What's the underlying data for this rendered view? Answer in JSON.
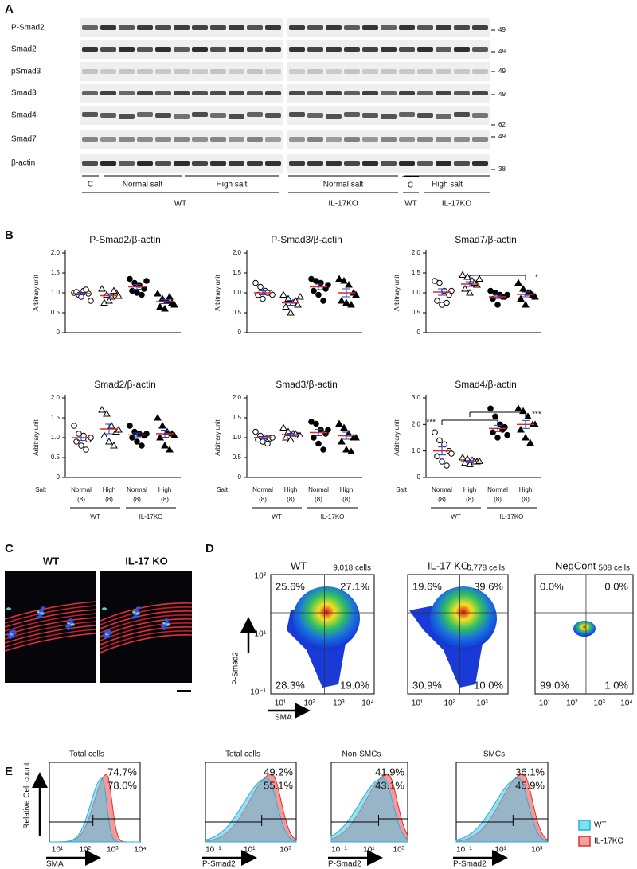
{
  "panel_a": {
    "label": "A",
    "rows": [
      {
        "name": "P-Smad2",
        "mw": "49"
      },
      {
        "name": "Smad2",
        "mw": "49"
      },
      {
        "name": "pSmad3",
        "mw": "49"
      },
      {
        "name": "Smad3",
        "mw": "49"
      },
      {
        "name": "Smad4",
        "mw": "62"
      },
      {
        "name": "Smad7",
        "mw": "49"
      },
      {
        "name": "β-actin",
        "mw": "38"
      }
    ],
    "groups": [
      "C",
      "Normal salt",
      "High salt",
      "Normal salt",
      "C",
      "High salt"
    ],
    "genotypes": [
      "WT",
      "IL-17KO",
      "WT",
      "IL-17KO"
    ]
  },
  "panel_b": {
    "label": "B"
  },
  "chart_data": [
    {
      "type": "dot",
      "title": "P-Smad2/β-actin",
      "y_label": "Arbitrary unit",
      "ylim": [
        0,
        2
      ],
      "yticks": [
        0,
        0.5,
        {
          "value": 1,
          "label": "1.0"
        },
        1.5,
        {
          "value": 2,
          "label": "2.0"
        }
      ],
      "markers": [
        "open-circle",
        "open-triangle",
        "filled-circle",
        "filled-triangle"
      ],
      "mean_color": "#e02a1c",
      "sem_color": "#1f3fd0",
      "groups": [
        {
          "values": [
            1.0,
            0.95,
            1.05,
            0.98,
            1.02,
            0.9,
            1.08,
            0.8
          ],
          "mean": 0.98,
          "sem": 0.03
        },
        {
          "values": [
            1.1,
            0.95,
            0.9,
            1.0,
            0.75,
            0.8,
            1.05,
            0.92
          ],
          "mean": 0.93,
          "sem": 0.05
        },
        {
          "values": [
            1.35,
            1.25,
            1.2,
            1.1,
            1.05,
            1.0,
            0.95,
            1.3
          ],
          "mean": 1.15,
          "sem": 0.06
        },
        {
          "values": [
            0.98,
            0.85,
            0.8,
            0.75,
            0.65,
            0.6,
            0.9,
            0.7
          ],
          "mean": 0.78,
          "sem": 0.05
        }
      ]
    },
    {
      "type": "dot",
      "title": "P-Smad3/β-actin",
      "y_label": "Arbitrary unit",
      "ylim": [
        0,
        2
      ],
      "yticks": [
        0,
        0.5,
        {
          "value": 1,
          "label": "1.0"
        },
        1.5,
        {
          "value": 2,
          "label": "2.0"
        }
      ],
      "markers": [
        "open-circle",
        "open-triangle",
        "filled-circle",
        "filled-triangle"
      ],
      "mean_color": "#e02a1c",
      "sem_color": "#1f3fd0",
      "groups": [
        {
          "values": [
            1.25,
            1.15,
            1.05,
            1.0,
            0.95,
            0.85,
            1.0,
            0.95
          ],
          "mean": 1.0,
          "sem": 0.05
        },
        {
          "values": [
            0.95,
            0.85,
            0.75,
            0.7,
            0.65,
            0.5,
            0.8,
            0.9
          ],
          "mean": 0.75,
          "sem": 0.06
        },
        {
          "values": [
            1.35,
            1.3,
            1.25,
            1.1,
            1.05,
            0.95,
            0.8,
            1.2
          ],
          "mean": 1.15,
          "sem": 0.07
        },
        {
          "values": [
            1.35,
            1.3,
            1.2,
            1.0,
            0.8,
            0.75,
            0.7,
            0.95
          ],
          "mean": 1.0,
          "sem": 0.1
        }
      ]
    },
    {
      "type": "dot",
      "title": "Smad7/β-actin",
      "y_label": "Arbitrary unit",
      "ylim": [
        0,
        2
      ],
      "yticks": [
        0,
        0.5,
        {
          "value": 1,
          "label": "1.0"
        },
        1.5,
        {
          "value": 2,
          "label": "2.0"
        }
      ],
      "markers": [
        "open-circle",
        "open-triangle",
        "filled-circle",
        "filled-triangle"
      ],
      "mean_color": "#e02a1c",
      "sem_color": "#1f3fd0",
      "groups": [
        {
          "values": [
            1.3,
            1.25,
            1.05,
            0.95,
            0.8,
            0.7,
            0.75,
            1.05
          ],
          "mean": 1.02,
          "sem": 0.08
        },
        {
          "values": [
            1.45,
            1.4,
            1.3,
            1.2,
            1.1,
            1.0,
            1.25,
            1.35
          ],
          "mean": 1.22,
          "sem": 0.06
        },
        {
          "values": [
            1.05,
            1.0,
            0.95,
            0.9,
            0.85,
            0.7,
            0.9,
            0.95
          ],
          "mean": 0.9,
          "sem": 0.04
        },
        {
          "values": [
            1.25,
            1.1,
            1.0,
            0.95,
            0.85,
            0.7,
            1.0,
            0.9
          ],
          "mean": 0.96,
          "sem": 0.06
        }
      ],
      "annotations": [
        {
          "text": "*",
          "between": [
            1,
            3
          ]
        }
      ]
    },
    {
      "type": "dot",
      "title": "Smad2/β-actin",
      "y_label": "Arbitrary unit",
      "ylim": [
        0,
        2
      ],
      "yticks": [
        0,
        0.5,
        {
          "value": 1,
          "label": "1.0"
        },
        1.5,
        {
          "value": 2,
          "label": "2.0"
        }
      ],
      "markers": [
        "open-circle",
        "open-triangle",
        "filled-circle",
        "filled-triangle"
      ],
      "mean_color": "#e02a1c",
      "sem_color": "#1f3fd0",
      "x_label": "Salt",
      "categories": [
        "Normal",
        "High",
        "Normal",
        "High"
      ],
      "n_labels": [
        "(8)",
        "(8)",
        "(8)",
        "(8)"
      ],
      "genotypes": [
        "WT",
        "IL-17KO"
      ],
      "groups": [
        {
          "values": [
            1.3,
            1.1,
            1.05,
            0.95,
            0.9,
            0.8,
            0.7,
            1.0
          ],
          "mean": 1.0,
          "sem": 0.07
        },
        {
          "values": [
            1.7,
            1.6,
            1.3,
            1.15,
            1.05,
            0.9,
            0.8,
            1.2
          ],
          "mean": 1.22,
          "sem": 0.12
        },
        {
          "values": [
            1.3,
            1.15,
            1.1,
            1.05,
            1.0,
            0.9,
            0.8,
            1.1
          ],
          "mean": 1.07,
          "sem": 0.05
        },
        {
          "values": [
            1.5,
            1.3,
            1.15,
            1.1,
            1.0,
            0.8,
            0.7,
            1.05
          ],
          "mean": 1.1,
          "sem": 0.09
        }
      ]
    },
    {
      "type": "dot",
      "title": "Smad3/β-actin",
      "y_label": "Arbitrary unit",
      "ylim": [
        0,
        2
      ],
      "yticks": [
        0,
        0.5,
        {
          "value": 1,
          "label": "1.0"
        },
        1.5,
        {
          "value": 2,
          "label": "2.0"
        }
      ],
      "markers": [
        "open-circle",
        "open-triangle",
        "filled-circle",
        "filled-triangle"
      ],
      "mean_color": "#e02a1c",
      "sem_color": "#1f3fd0",
      "x_label": "Salt",
      "categories": [
        "Normal",
        "High",
        "Normal",
        "High"
      ],
      "n_labels": [
        "(8)",
        "(8)",
        "(8)",
        "(8)"
      ],
      "genotypes": [
        "WT",
        "IL-17KO"
      ],
      "groups": [
        {
          "values": [
            1.15,
            1.05,
            1.0,
            0.98,
            0.95,
            0.9,
            0.85,
            1.0
          ],
          "mean": 1.0,
          "sem": 0.03
        },
        {
          "values": [
            1.25,
            1.15,
            1.1,
            1.05,
            1.0,
            0.95,
            1.1,
            1.05
          ],
          "mean": 1.08,
          "sem": 0.03
        },
        {
          "values": [
            1.4,
            1.35,
            1.2,
            1.1,
            1.0,
            0.85,
            0.7,
            1.2
          ],
          "mean": 1.13,
          "sem": 0.08
        },
        {
          "values": [
            1.35,
            1.25,
            1.1,
            1.0,
            0.9,
            0.7,
            0.65,
            1.0
          ],
          "mean": 1.05,
          "sem": 0.09
        }
      ]
    },
    {
      "type": "dot",
      "title": "Smad4/β-actin",
      "y_label": "Arbitrary unit",
      "ylim": [
        0,
        3
      ],
      "yticks": [
        0,
        {
          "value": 1,
          "label": "1.0"
        },
        {
          "value": 2,
          "label": "2.0"
        },
        {
          "value": 3,
          "label": "3.0"
        }
      ],
      "markers": [
        "open-circle",
        "open-triangle",
        "filled-circle",
        "filled-triangle"
      ],
      "mean_color": "#e02a1c",
      "sem_color": "#1f3fd0",
      "x_label": "Salt",
      "categories": [
        "Normal",
        "High",
        "Normal",
        "High"
      ],
      "n_labels": [
        "(8)",
        "(8)",
        "(8)",
        "(8)"
      ],
      "genotypes": [
        "WT",
        "IL-17KO"
      ],
      "groups": [
        {
          "values": [
            1.7,
            1.4,
            1.25,
            1.0,
            0.8,
            0.6,
            0.45,
            0.9
          ],
          "mean": 1.0,
          "sem": 0.15
        },
        {
          "values": [
            0.75,
            0.7,
            0.65,
            0.6,
            0.55,
            0.5,
            0.6,
            0.62
          ],
          "mean": 0.6,
          "sem": 0.04
        },
        {
          "values": [
            2.6,
            2.3,
            2.0,
            1.9,
            1.7,
            1.5,
            1.8,
            1.6
          ],
          "mean": 1.85,
          "sem": 0.12
        },
        {
          "values": [
            2.6,
            2.5,
            2.3,
            2.0,
            1.8,
            1.5,
            1.3,
            2.0
          ],
          "mean": 2.0,
          "sem": 0.15
        }
      ],
      "annotations": [
        {
          "text": "***",
          "between": [
            0,
            2
          ]
        },
        {
          "text": "***",
          "between": [
            1,
            3
          ]
        }
      ]
    }
  ],
  "panel_c": {
    "label": "C",
    "images": [
      "WT",
      "IL-17 KO"
    ]
  },
  "panel_d": {
    "label": "D",
    "y_label": "P-Smad2",
    "x_label": "SMA",
    "yticks": [
      "10³",
      "10¹",
      "10⁻¹"
    ],
    "plots": [
      {
        "title": "WT",
        "cells": "9,018 cells",
        "quadrants": [
          "25.6%",
          "27.1%",
          "28.3%",
          "19.0%"
        ],
        "xticks": [
          "10¹",
          "10²",
          "10³",
          "10⁴"
        ]
      },
      {
        "title": "IL-17 KO",
        "cells": "6,778 cells",
        "quadrants": [
          "19.6%",
          "39.6%",
          "30.9%",
          "10.0%"
        ],
        "xticks": [
          "10¹",
          "10²",
          "10³"
        ]
      },
      {
        "title": "NegCont",
        "cells": "508 cells",
        "quadrants": [
          "0.0%",
          "0.0%",
          "99.0%",
          "1.0%"
        ],
        "xticks": [
          "10¹",
          "10²",
          "10³",
          "10⁴"
        ]
      }
    ]
  },
  "panel_e": {
    "label": "E",
    "y_label": "Relative Cell count",
    "plots": [
      {
        "title": "Total cells",
        "wt": "74.7%",
        "ko": "78.0%",
        "x_label": "SMA",
        "xticks": [
          "10¹",
          "10²",
          "10³",
          "10⁴"
        ]
      },
      {
        "title": "Total cells",
        "wt": "49.2%",
        "ko": "55.1%",
        "x_label": "P-Smad2",
        "xticks": [
          "10⁻¹",
          "10¹",
          "10³"
        ]
      },
      {
        "title": "Non-SMCs",
        "wt": "41.9%",
        "ko": "43.1%",
        "x_label": "P-Smad2",
        "xticks": [
          "10⁻¹",
          "10¹",
          "10³"
        ]
      },
      {
        "title": "SMCs",
        "wt": "36.1%",
        "ko": "45.9%",
        "x_label": "P-Smad2",
        "xticks": [
          "10⁻¹",
          "10¹",
          "10³"
        ]
      }
    ],
    "legend": [
      "WT",
      "IL-17KO"
    ]
  }
}
